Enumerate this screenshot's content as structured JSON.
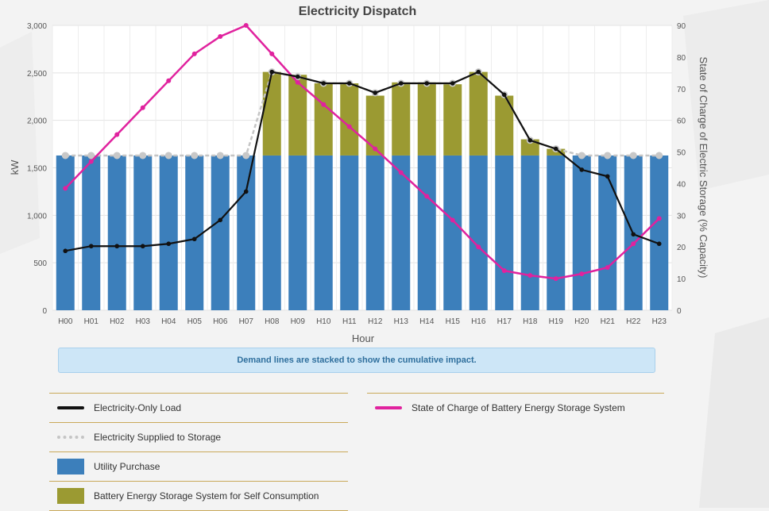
{
  "chart_data": {
    "type": "bar",
    "title": "Electricity Dispatch",
    "xlabel": "Hour",
    "ylabel": "kW",
    "y2label": "State of Charge of Electric Storage (% Capacity)",
    "ylim": [
      0,
      3000
    ],
    "yticks": [
      0,
      500,
      1000,
      1500,
      2000,
      2500,
      3000
    ],
    "y2lim": [
      0,
      90
    ],
    "y2ticks": [
      0,
      10,
      20,
      30,
      40,
      50,
      60,
      70,
      80,
      90
    ],
    "grid": true,
    "categories": [
      "H00",
      "H01",
      "H02",
      "H03",
      "H04",
      "H05",
      "H06",
      "H07",
      "H08",
      "H09",
      "H10",
      "H11",
      "H12",
      "H13",
      "H14",
      "H15",
      "H16",
      "H17",
      "H18",
      "H19",
      "H20",
      "H21",
      "H22",
      "H23"
    ],
    "series": [
      {
        "name": "Utility Purchase",
        "kind": "bar",
        "color": "#3c7fbb",
        "values": [
          1630,
          1630,
          1630,
          1630,
          1630,
          1630,
          1630,
          1630,
          1630,
          1630,
          1630,
          1630,
          1630,
          1630,
          1630,
          1630,
          1630,
          1630,
          1630,
          1630,
          1630,
          1630,
          1630,
          1630
        ]
      },
      {
        "name": "Battery Energy Storage System for Self Consumption",
        "kind": "bar",
        "color": "#9b9a32",
        "values": [
          0,
          0,
          0,
          0,
          0,
          0,
          0,
          0,
          880,
          850,
          760,
          760,
          630,
          770,
          770,
          750,
          880,
          630,
          170,
          70,
          0,
          0,
          0,
          0
        ]
      },
      {
        "name": "Electricity-Only Load",
        "kind": "line",
        "color": "#111111",
        "values": [
          625,
          675,
          675,
          675,
          700,
          750,
          950,
          1250,
          2510,
          2460,
          2390,
          2390,
          2290,
          2390,
          2390,
          2390,
          2510,
          2270,
          1790,
          1700,
          1480,
          1410,
          800,
          700
        ]
      },
      {
        "name": "Electricity Supplied to Storage",
        "kind": "dashed-line",
        "color": "#c5c5c5",
        "values": [
          1630,
          1630,
          1630,
          1630,
          1630,
          1630,
          1630,
          1630,
          2510,
          2460,
          2390,
          2390,
          2290,
          2390,
          2390,
          2390,
          2510,
          2270,
          1790,
          1700,
          1630,
          1630,
          1630,
          1630
        ]
      },
      {
        "name": "State of Charge of Battery Energy Storage System",
        "kind": "line",
        "axis": "y2",
        "color": "#e0229e",
        "values": [
          38.5,
          47,
          55.5,
          64,
          72.5,
          81,
          86.5,
          90,
          81,
          72,
          65,
          58,
          51,
          43.5,
          36,
          28.5,
          20,
          12.5,
          11,
          10,
          11.5,
          13.5,
          21,
          29
        ]
      }
    ]
  },
  "note": "Demand lines are stacked to show the cumulative impact.",
  "legend": {
    "left": [
      {
        "label": "Electricity-Only Load",
        "swatch": "line-black"
      },
      {
        "label": "Electricity Supplied to Storage",
        "swatch": "dash-gray"
      },
      {
        "label": "Utility Purchase",
        "swatch": "box-blue"
      },
      {
        "label": "Battery Energy Storage System for Self Consumption",
        "swatch": "box-olive"
      }
    ],
    "right": [
      {
        "label": "State of Charge of Battery Energy Storage System",
        "swatch": "line-magenta"
      }
    ]
  }
}
